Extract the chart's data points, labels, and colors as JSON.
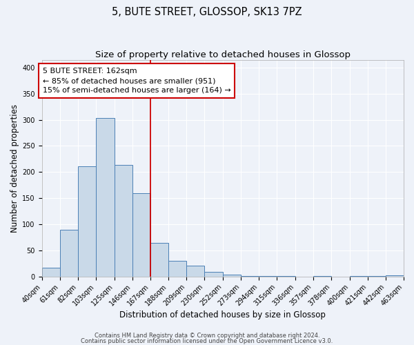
{
  "title": "5, BUTE STREET, GLOSSOP, SK13 7PZ",
  "subtitle": "Size of property relative to detached houses in Glossop",
  "xlabel": "Distribution of detached houses by size in Glossop",
  "ylabel": "Number of detached properties",
  "bin_edges": [
    40,
    61,
    82,
    103,
    125,
    146,
    167,
    188,
    209,
    230,
    252,
    273,
    294,
    315,
    336,
    357,
    378,
    400,
    421,
    442,
    463
  ],
  "bar_heights": [
    17,
    89,
    211,
    304,
    213,
    160,
    64,
    30,
    20,
    9,
    4,
    1,
    1,
    1,
    0,
    1,
    0,
    1,
    1,
    2
  ],
  "bar_facecolor": "#c9d9e8",
  "bar_edgecolor": "#4a7fb5",
  "vline_x": 167,
  "vline_color": "#cc0000",
  "annotation_line1": "5 BUTE STREET: 162sqm",
  "annotation_line2": "← 85% of detached houses are smaller (951)",
  "annotation_line3": "15% of semi-detached houses are larger (164) →",
  "ylim": [
    0,
    415
  ],
  "yticks": [
    0,
    50,
    100,
    150,
    200,
    250,
    300,
    350,
    400
  ],
  "tick_labels": [
    "40sqm",
    "61sqm",
    "82sqm",
    "103sqm",
    "125sqm",
    "146sqm",
    "167sqm",
    "188sqm",
    "209sqm",
    "230sqm",
    "252sqm",
    "273sqm",
    "294sqm",
    "315sqm",
    "336sqm",
    "357sqm",
    "378sqm",
    "400sqm",
    "421sqm",
    "442sqm",
    "463sqm"
  ],
  "footnote1": "Contains HM Land Registry data © Crown copyright and database right 2024.",
  "footnote2": "Contains public sector information licensed under the Open Government Licence v3.0.",
  "background_color": "#eef2f9",
  "grid_color": "#ffffff",
  "title_fontsize": 10.5,
  "subtitle_fontsize": 9.5,
  "axis_label_fontsize": 8.5,
  "tick_fontsize": 7,
  "annotation_fontsize": 8,
  "footnote_fontsize": 6
}
